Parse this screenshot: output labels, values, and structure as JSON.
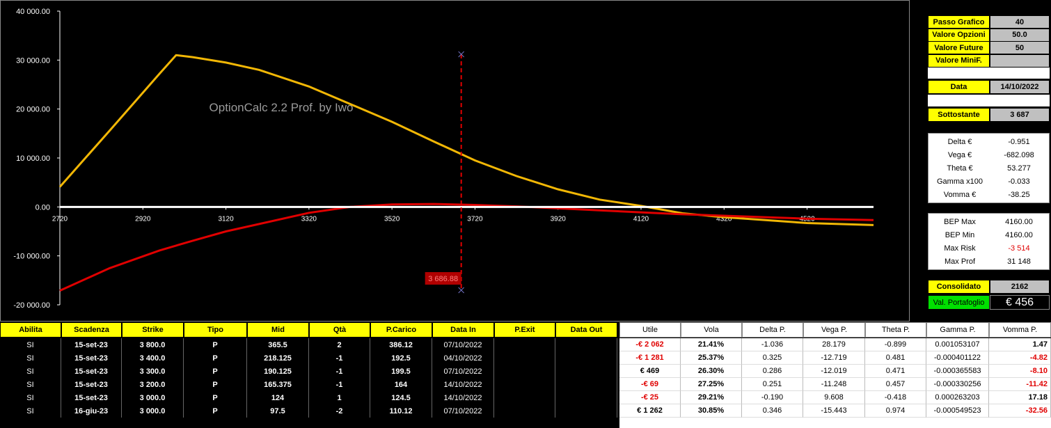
{
  "chart_data": {
    "type": "line",
    "watermark": "OptionCalc 2.2 Prof. by Iwo",
    "x": [
      2720,
      2840,
      2960,
      3000,
      3040,
      3120,
      3200,
      3320,
      3420,
      3520,
      3620,
      3720,
      3820,
      3920,
      4020,
      4120,
      4220,
      4320,
      4420,
      4520,
      4680
    ],
    "series": [
      {
        "color": "#f2b705",
        "values": [
          4100,
          15600,
          27200,
          31000,
          30600,
          29500,
          28000,
          24600,
          21000,
          17400,
          13400,
          9500,
          6300,
          3600,
          1500,
          200,
          -1300,
          -2100,
          -2700,
          -3300,
          -3700
        ]
      },
      {
        "color": "#e00000",
        "values": [
          -17100,
          -12500,
          -8900,
          -7900,
          -6900,
          -5000,
          -3500,
          -1200,
          0,
          500,
          600,
          400,
          100,
          -300,
          -700,
          -1100,
          -1500,
          -1800,
          -2100,
          -2400,
          -2700
        ]
      }
    ],
    "xlim": [
      2720,
      4680
    ],
    "xticks": [
      2720,
      2920,
      3120,
      3320,
      3520,
      3720,
      3920,
      4120,
      4320,
      4520
    ],
    "ylim": [
      -20000,
      40000
    ],
    "yticks": [
      {
        "value": -20000,
        "label": "-20 000.00"
      },
      {
        "value": -10000,
        "label": "-10 000.00"
      },
      {
        "value": 0,
        "label": "0.00"
      },
      {
        "value": 10000,
        "label": "10 000.00"
      },
      {
        "value": 20000,
        "label": "20 000.00"
      },
      {
        "value": 30000,
        "label": "30 000.00"
      },
      {
        "value": 40000,
        "label": "40 000.00"
      }
    ],
    "marker": {
      "value": 3686.88,
      "label": "3 686.88"
    }
  },
  "panel": {
    "settings": [
      {
        "label": "Passo Grafico",
        "value": "40"
      },
      {
        "label": "Valore Opzioni",
        "value": "50.0"
      },
      {
        "label": "Valore Future",
        "value": "50"
      },
      {
        "label": "Valore MiniF."
      }
    ],
    "date": {
      "label": "Data",
      "value": "14/10/2022"
    },
    "underlying": {
      "label": "Sottostante",
      "value": "3 687"
    },
    "greeks": [
      {
        "label": "Delta €",
        "value": "-0.951"
      },
      {
        "label": "Vega €",
        "value": "-682.098"
      },
      {
        "label": "Theta €",
        "value": "53.277"
      },
      {
        "label": "Gamma x100",
        "value": "-0.033"
      },
      {
        "label": "Vomma €",
        "value": "-38.25"
      }
    ],
    "bep": [
      {
        "label": "BEP Max",
        "value": "4160.00"
      },
      {
        "label": "BEP Min",
        "value": "4160.00"
      },
      {
        "label": "Max Risk",
        "value": "-3 514"
      },
      {
        "label": "Max Prof",
        "value": "31 148"
      }
    ],
    "consolidated": {
      "label": "Consolidato",
      "value": "2162"
    },
    "portfolio": {
      "label": "Val. Portafoglio",
      "value": "€ 456"
    }
  },
  "table": {
    "headers": [
      "Abilita",
      "Scadenza",
      "Strike",
      "Tipo",
      "Mid",
      "Qtà",
      "P.Carico",
      "Data In",
      "P.Exit",
      "Data Out",
      "Utile",
      "Vola",
      "Delta P.",
      "Vega P.",
      "Theta P.",
      "Gamma P.",
      "Vomma P."
    ],
    "rows": [
      {
        "left": [
          "SI",
          "15-set-23",
          "3 800.0",
          "P",
          "365.5",
          "2",
          "386.12",
          "07/10/2022"
        ],
        "right": [
          "-€ 2 062",
          "21.41%",
          "-1.036",
          "28.179",
          "-0.899",
          "0.001053107",
          "1.47"
        ]
      },
      {
        "left": [
          "SI",
          "15-set-23",
          "3 400.0",
          "P",
          "218.125",
          "-1",
          "192.5",
          "04/10/2022"
        ],
        "right": [
          "-€ 1 281",
          "25.37%",
          "0.325",
          "-12.719",
          "0.481",
          "-0.000401122",
          "-4.82"
        ]
      },
      {
        "left": [
          "SI",
          "15-set-23",
          "3 300.0",
          "P",
          "190.125",
          "-1",
          "199.5",
          "07/10/2022"
        ],
        "right": [
          "€ 469",
          "26.30%",
          "0.286",
          "-12.019",
          "0.471",
          "-0.000365583",
          "-8.10"
        ]
      },
      {
        "left": [
          "SI",
          "15-set-23",
          "3 200.0",
          "P",
          "165.375",
          "-1",
          "164",
          "14/10/2022"
        ],
        "right": [
          "-€ 69",
          "27.25%",
          "0.251",
          "-11.248",
          "0.457",
          "-0.000330256",
          "-11.42"
        ]
      },
      {
        "left": [
          "SI",
          "15-set-23",
          "3 000.0",
          "P",
          "124",
          "1",
          "124.5",
          "14/10/2022"
        ],
        "right": [
          "-€ 25",
          "29.21%",
          "-0.190",
          "9.608",
          "-0.418",
          "0.000263203",
          "17.18"
        ]
      },
      {
        "left": [
          "SI",
          "16-giu-23",
          "3 000.0",
          "P",
          "97.5",
          "-2",
          "110.12",
          "07/10/2022"
        ],
        "right": [
          "€ 1 262",
          "30.85%",
          "0.346",
          "-15.443",
          "0.974",
          "-0.000549523",
          "-32.56"
        ]
      }
    ]
  }
}
